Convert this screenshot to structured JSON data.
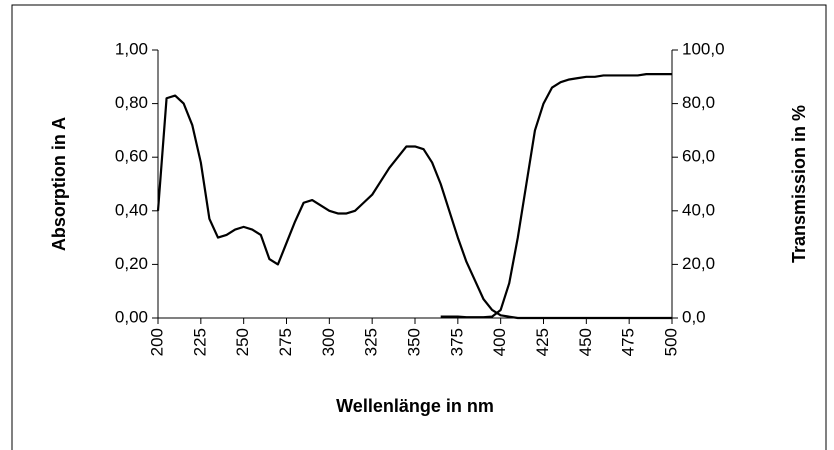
{
  "chart_data": {
    "type": "line",
    "xlabel": "Wellenlänge in nm",
    "ylabel": "Absorption in A",
    "y2label": "Transmission in %",
    "x": [
      200,
      205,
      210,
      215,
      220,
      225,
      230,
      235,
      240,
      245,
      250,
      255,
      260,
      265,
      270,
      275,
      280,
      285,
      290,
      295,
      300,
      305,
      310,
      315,
      320,
      325,
      330,
      335,
      340,
      345,
      350,
      355,
      360,
      365,
      370,
      375,
      380,
      385,
      390,
      395,
      400,
      405,
      410,
      415,
      420,
      425,
      430,
      435,
      440,
      445,
      450,
      455,
      460,
      465,
      470,
      475,
      480,
      485,
      490,
      495,
      500
    ],
    "series": [
      {
        "name": "Absorption",
        "color": "#000000",
        "values": [
          0.4,
          0.82,
          0.83,
          0.8,
          0.72,
          0.58,
          0.37,
          0.3,
          0.31,
          0.33,
          0.34,
          0.33,
          0.31,
          0.22,
          0.2,
          0.28,
          0.36,
          0.43,
          0.44,
          0.42,
          0.4,
          0.39,
          0.39,
          0.4,
          0.43,
          0.46,
          0.51,
          0.56,
          0.6,
          0.64,
          0.64,
          0.63,
          0.58,
          0.5,
          0.4,
          0.3,
          0.21,
          0.14,
          0.07,
          0.03,
          0.01,
          0.005,
          0,
          0,
          0,
          0,
          0,
          0,
          0,
          0,
          0,
          0,
          0,
          0,
          0,
          0,
          0,
          0,
          0,
          0,
          0
        ]
      },
      {
        "name": "Transmission",
        "color": "#000000",
        "axis": "y2",
        "values": [
          null,
          null,
          null,
          null,
          null,
          null,
          null,
          null,
          null,
          null,
          null,
          null,
          null,
          null,
          null,
          null,
          null,
          null,
          null,
          null,
          null,
          null,
          null,
          null,
          null,
          null,
          null,
          null,
          null,
          null,
          null,
          null,
          null,
          0.5,
          0.5,
          0.5,
          0.3,
          0.3,
          0.3,
          0.5,
          3,
          13,
          30,
          50,
          70,
          80,
          86,
          88,
          89,
          89.5,
          90,
          90,
          90.5,
          90.5,
          90.5,
          90.5,
          90.5,
          91,
          91,
          91,
          91
        ]
      }
    ],
    "xlim": [
      200,
      500
    ],
    "xticks": [
      200,
      225,
      250,
      275,
      300,
      325,
      350,
      375,
      400,
      425,
      450,
      475,
      500
    ],
    "ylim": [
      0,
      1
    ],
    "yticks": [
      {
        "value": 0,
        "label": "0,00"
      },
      {
        "value": 0.2,
        "label": "0,20"
      },
      {
        "value": 0.4,
        "label": "0,40"
      },
      {
        "value": 0.6,
        "label": "0,60"
      },
      {
        "value": 0.8,
        "label": "0,80"
      },
      {
        "value": 1,
        "label": "1,00"
      }
    ],
    "y2lim": [
      0,
      100
    ],
    "y2ticks": [
      {
        "value": 0,
        "label": "0,0"
      },
      {
        "value": 20,
        "label": "20,0"
      },
      {
        "value": 40,
        "label": "40,0"
      },
      {
        "value": 60,
        "label": "60,0"
      },
      {
        "value": 80,
        "label": "80,0"
      },
      {
        "value": 100,
        "label": "100,0"
      }
    ],
    "grid": false
  }
}
